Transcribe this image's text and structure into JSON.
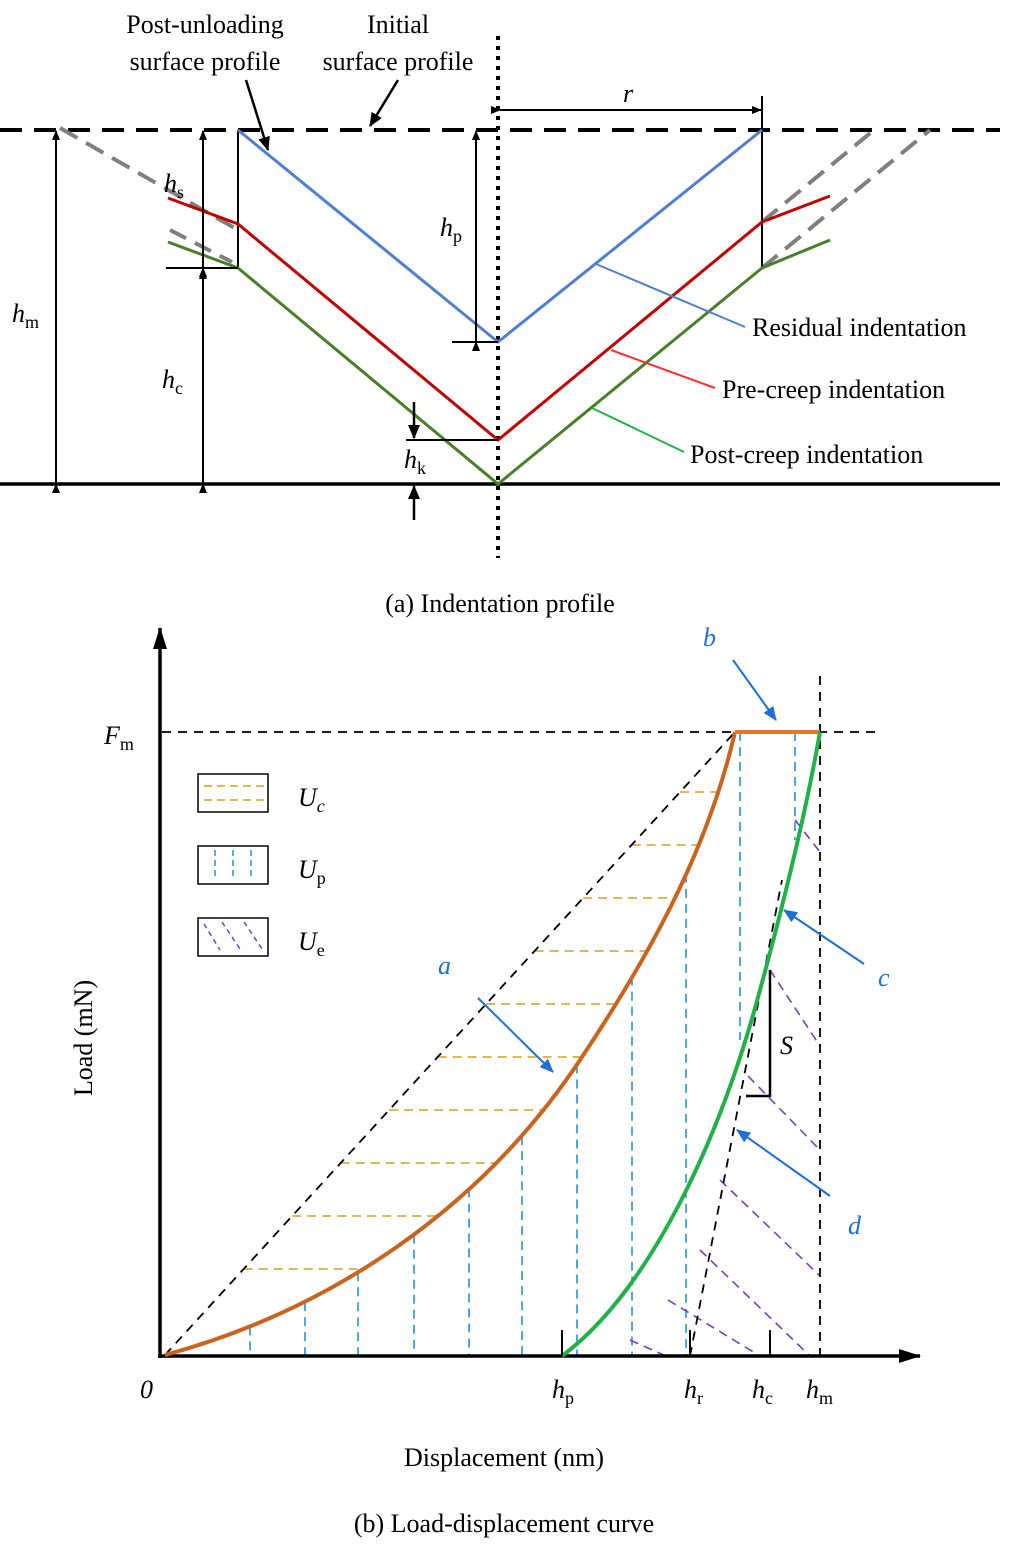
{
  "panel_a": {
    "caption": "(a)  Indentation profile",
    "label_post_unloading_1": "Post-unloading",
    "label_post_unloading_2": "surface profile",
    "label_initial_1": "Initial",
    "label_initial_2": "surface profile",
    "label_r": "r",
    "label_hs_main": "h",
    "label_hs_sub": "s",
    "label_hp_main": "h",
    "label_hp_sub": "p",
    "label_hm_main": "h",
    "label_hm_sub": "m",
    "label_hc_main": "h",
    "label_hc_sub": "c",
    "label_hk_main": "h",
    "label_hk_sub": "k",
    "legend_residual": "Residual indentation",
    "legend_precreep": "Pre-creep indentation",
    "legend_postcreep": "Post-creep indentation",
    "colors": {
      "residual": "#4f7fd0",
      "precreep": "#c00000",
      "postcreep": "#4a7e2a",
      "surface": "#7f7f7f"
    }
  },
  "panel_b": {
    "caption": "(b)  Load-displacement curve",
    "ylabel": "Load (mN)",
    "xlabel": "Displacement (nm)",
    "origin": "0",
    "fm_main": "F",
    "fm_sub": "m",
    "legend": [
      {
        "main": "U",
        "sub": "c",
        "sub_italic": true
      },
      {
        "main": "U",
        "sub": "p",
        "sub_italic": false
      },
      {
        "main": "U",
        "sub": "e",
        "sub_italic": false
      }
    ],
    "curve_a": "a",
    "curve_b": "b",
    "curve_c": "c",
    "curve_d": "d",
    "slope": "S",
    "ticks": [
      {
        "main": "h",
        "sub": "p"
      },
      {
        "main": "h",
        "sub": "r"
      },
      {
        "main": "h",
        "sub": "c"
      },
      {
        "main": "h",
        "sub": "m"
      }
    ],
    "colors": {
      "loading": "#c8641e",
      "unloading": "#22b04a",
      "uc": "#d4a020",
      "up": "#2a8fd8",
      "ue": "#7a3fb5",
      "pointer": "#1f6fd6"
    }
  }
}
